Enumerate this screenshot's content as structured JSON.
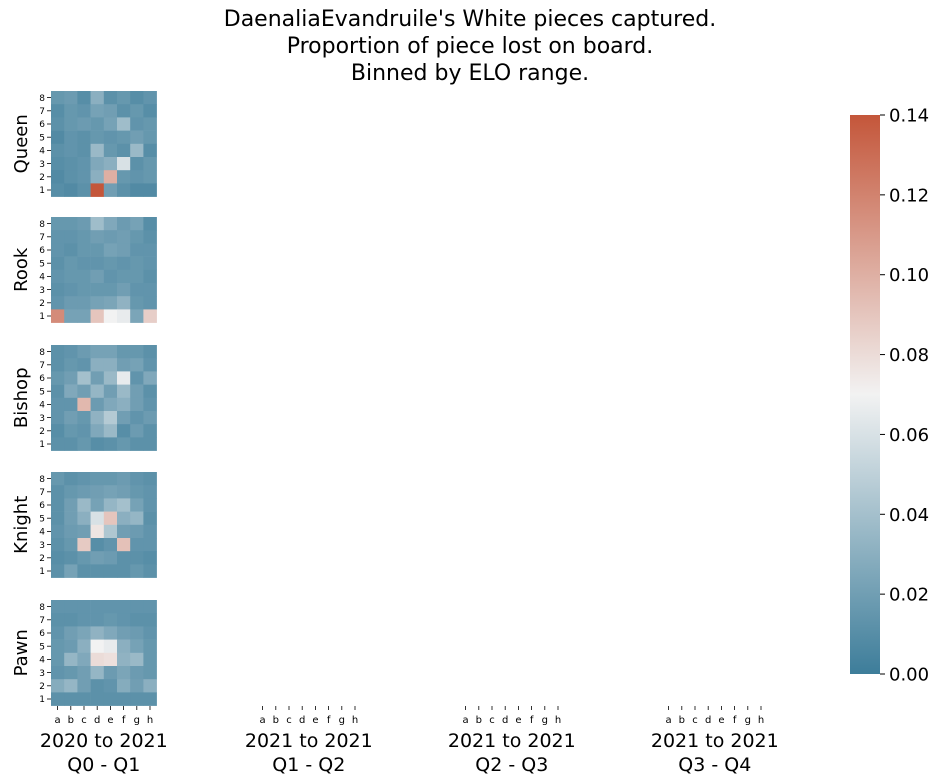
{
  "chart_data": {
    "type": "heatmap",
    "title": [
      "DaenaliaEvandruile's White pieces captured.",
      "Proportion of piece lost on board.",
      "Binned by ELO range."
    ],
    "files": [
      "a",
      "b",
      "c",
      "d",
      "e",
      "f",
      "g",
      "h"
    ],
    "ranks": [
      "8",
      "7",
      "6",
      "5",
      "4",
      "3",
      "2",
      "1"
    ],
    "pieces": [
      "Queen",
      "Rook",
      "Bishop",
      "Knight",
      "Pawn"
    ],
    "columns": [
      {
        "line1": "2020 to 2021",
        "line2": "Q0 - Q1"
      },
      {
        "line1": "2021 to 2021",
        "line2": "Q1 - Q2"
      },
      {
        "line1": "2021 to 2021",
        "line2": "Q2 - Q3"
      },
      {
        "line1": "2021 to 2021",
        "line2": "Q3 - Q4"
      }
    ],
    "colorbar": {
      "min": 0.0,
      "max": 0.14,
      "ticks": [
        "0.00",
        "0.02",
        "0.04",
        "0.06",
        "0.08",
        "0.10",
        "0.12",
        "0.14"
      ],
      "low_color": "#3d7d9a",
      "mid_color": "#f2f2f2",
      "high_color": "#c4563a"
    },
    "grids": {
      "Queen": [
        [
          0.016,
          0.018,
          0.01,
          0.03,
          0.012,
          0.016,
          0.01,
          0.014
        ],
        [
          0.01,
          0.016,
          0.014,
          0.022,
          0.02,
          0.012,
          0.016,
          0.01
        ],
        [
          0.012,
          0.016,
          0.018,
          0.016,
          0.022,
          0.038,
          0.014,
          0.016
        ],
        [
          0.008,
          0.014,
          0.012,
          0.016,
          0.014,
          0.016,
          0.02,
          0.016
        ],
        [
          0.012,
          0.014,
          0.012,
          0.036,
          0.016,
          0.012,
          0.036,
          0.01
        ],
        [
          0.01,
          0.012,
          0.014,
          0.026,
          0.03,
          0.06,
          0.012,
          0.016
        ],
        [
          0.008,
          0.012,
          0.014,
          0.03,
          0.1,
          0.016,
          0.014,
          0.016
        ],
        [
          0.01,
          0.008,
          0.012,
          0.14,
          0.02,
          0.012,
          0.008,
          0.008
        ]
      ],
      "Rook": [
        [
          0.016,
          0.016,
          0.018,
          0.038,
          0.026,
          0.018,
          0.022,
          0.01
        ],
        [
          0.014,
          0.014,
          0.016,
          0.02,
          0.018,
          0.02,
          0.016,
          0.012
        ],
        [
          0.014,
          0.012,
          0.016,
          0.016,
          0.022,
          0.02,
          0.014,
          0.014
        ],
        [
          0.012,
          0.016,
          0.014,
          0.014,
          0.016,
          0.014,
          0.016,
          0.014
        ],
        [
          0.014,
          0.016,
          0.016,
          0.02,
          0.014,
          0.016,
          0.016,
          0.012
        ],
        [
          0.012,
          0.014,
          0.016,
          0.016,
          0.016,
          0.02,
          0.014,
          0.014
        ],
        [
          0.014,
          0.018,
          0.018,
          0.022,
          0.024,
          0.032,
          0.016,
          0.014
        ],
        [
          0.116,
          0.022,
          0.022,
          0.09,
          0.07,
          0.066,
          0.024,
          0.086
        ]
      ],
      "Bishop": [
        [
          0.012,
          0.014,
          0.018,
          0.022,
          0.022,
          0.016,
          0.016,
          0.012
        ],
        [
          0.012,
          0.016,
          0.014,
          0.03,
          0.03,
          0.02,
          0.022,
          0.014
        ],
        [
          0.016,
          0.02,
          0.04,
          0.02,
          0.036,
          0.066,
          0.014,
          0.026
        ],
        [
          0.012,
          0.026,
          0.02,
          0.034,
          0.02,
          0.036,
          0.02,
          0.012
        ],
        [
          0.014,
          0.014,
          0.096,
          0.018,
          0.026,
          0.03,
          0.02,
          0.014
        ],
        [
          0.014,
          0.02,
          0.016,
          0.032,
          0.046,
          0.02,
          0.014,
          0.018
        ],
        [
          0.01,
          0.016,
          0.014,
          0.026,
          0.036,
          0.01,
          0.018,
          0.012
        ],
        [
          0.012,
          0.012,
          0.016,
          0.01,
          0.012,
          0.016,
          0.012,
          0.012
        ]
      ],
      "Knight": [
        [
          0.016,
          0.012,
          0.014,
          0.016,
          0.016,
          0.018,
          0.014,
          0.012
        ],
        [
          0.012,
          0.016,
          0.018,
          0.02,
          0.022,
          0.02,
          0.016,
          0.014
        ],
        [
          0.012,
          0.02,
          0.036,
          0.022,
          0.034,
          0.04,
          0.022,
          0.014
        ],
        [
          0.012,
          0.02,
          0.03,
          0.06,
          0.09,
          0.03,
          0.034,
          0.012
        ],
        [
          0.014,
          0.018,
          0.02,
          0.076,
          0.044,
          0.02,
          0.018,
          0.014
        ],
        [
          0.012,
          0.016,
          0.088,
          0.01,
          0.014,
          0.092,
          0.014,
          0.014
        ],
        [
          0.01,
          0.012,
          0.016,
          0.02,
          0.018,
          0.012,
          0.012,
          0.01
        ],
        [
          0.012,
          0.022,
          0.012,
          0.012,
          0.012,
          0.012,
          0.016,
          0.012
        ]
      ],
      "Pawn": [
        [
          0.014,
          0.014,
          0.014,
          0.014,
          0.014,
          0.014,
          0.014,
          0.014
        ],
        [
          0.012,
          0.012,
          0.014,
          0.014,
          0.016,
          0.014,
          0.012,
          0.012
        ],
        [
          0.014,
          0.02,
          0.024,
          0.032,
          0.026,
          0.02,
          0.018,
          0.014
        ],
        [
          0.016,
          0.018,
          0.03,
          0.07,
          0.066,
          0.03,
          0.022,
          0.016
        ],
        [
          0.016,
          0.034,
          0.026,
          0.08,
          0.078,
          0.032,
          0.036,
          0.016
        ],
        [
          0.014,
          0.016,
          0.02,
          0.034,
          0.018,
          0.024,
          0.018,
          0.016
        ],
        [
          0.028,
          0.034,
          0.02,
          0.012,
          0.014,
          0.028,
          0.02,
          0.03
        ],
        [
          0.012,
          0.012,
          0.012,
          0.012,
          0.012,
          0.012,
          0.012,
          0.012
        ]
      ]
    }
  }
}
